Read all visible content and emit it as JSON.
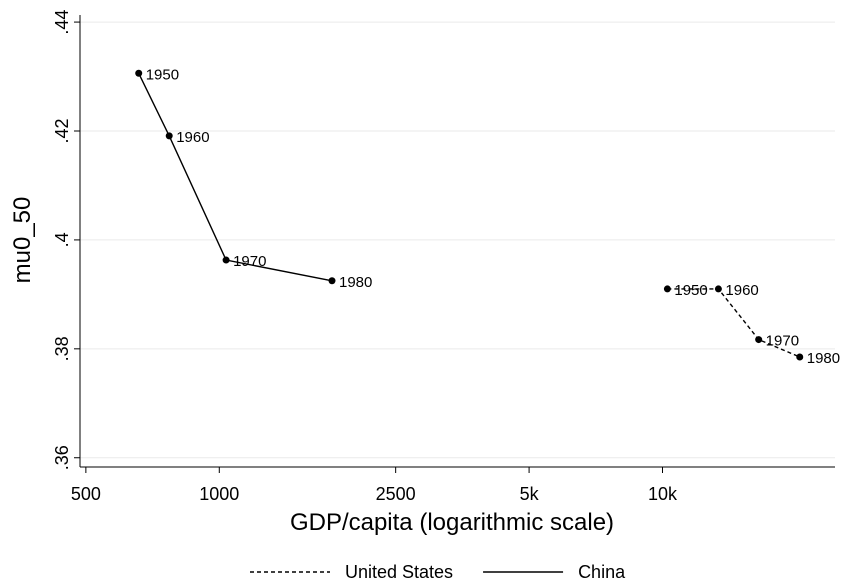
{
  "chart_data": {
    "type": "line",
    "x_label": "GDP/capita (logarithmic scale)",
    "y_label": "mu0_50",
    "xscale": "log",
    "xlim": [
      485,
      24500
    ],
    "ylim": [
      0.3583,
      0.4413
    ],
    "xticks": [
      500,
      1000,
      2500,
      {
        "value": 5000,
        "label": "5k"
      },
      {
        "value": 10000,
        "label": "10k"
      }
    ],
    "yticks": [
      {
        "value": 0.36,
        "label": ".36"
      },
      {
        "value": 0.38,
        "label": ".38"
      },
      {
        "value": 0.4,
        "label": ".4"
      },
      {
        "value": 0.42,
        "label": ".42"
      },
      {
        "value": 0.44,
        "label": ".44"
      }
    ],
    "grid": true,
    "legend": "bottom",
    "series": [
      {
        "name": "United States",
        "color": "#000000",
        "dash": "dashed",
        "x": [
          10256,
          13370,
          16480,
          20400
        ],
        "values": [
          0.391,
          0.391,
          0.3817,
          0.3785
        ],
        "point_labels": [
          "1950",
          "1960",
          "1970",
          "1980"
        ]
      },
      {
        "name": "China",
        "color": "#000000",
        "dash": "solid",
        "x": [
          658,
          771,
          1036,
          1796
        ],
        "values": [
          0.4306,
          0.4191,
          0.3963,
          0.3925
        ],
        "point_labels": [
          "1950",
          "1960",
          "1970",
          "1980"
        ]
      }
    ]
  }
}
